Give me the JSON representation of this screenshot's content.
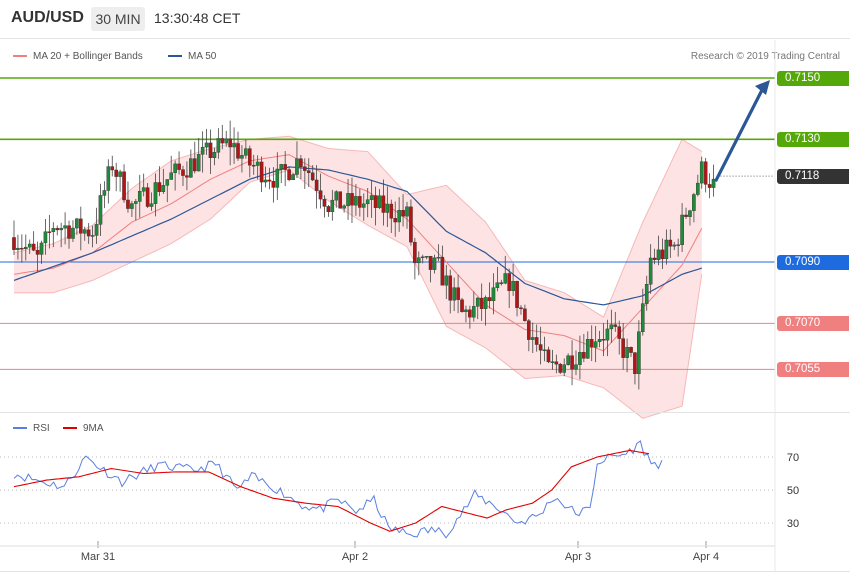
{
  "header": {
    "pair": "AUD/USD",
    "timeframe": "30 MIN",
    "time": "13:30:48 CET"
  },
  "legend": {
    "ma20_label": "MA 20 + Bollinger Bands",
    "ma20_color": "#f08080",
    "ma50_label": "MA 50",
    "ma50_color": "#2b5797"
  },
  "credit": "Research © 2019 Trading Central",
  "rsi_legend": {
    "rsi_label": "RSI",
    "rsi_color": "#5b7fe0",
    "ma9_label": "9MA",
    "ma9_color": "#e00000"
  },
  "levels": [
    {
      "price": 0.715,
      "label": "0.7150",
      "kind": "resistance",
      "color": "#55a80a"
    },
    {
      "price": 0.713,
      "label": "0.7130",
      "kind": "resistance",
      "color": "#55a80a"
    },
    {
      "price": 0.7118,
      "label": "0.7118",
      "kind": "last",
      "color": "#333333"
    },
    {
      "price": 0.709,
      "label": "0.7090",
      "kind": "pivot",
      "color": "#1e6be0"
    },
    {
      "price": 0.707,
      "label": "0.7070",
      "kind": "support",
      "color": "#f07f7f"
    },
    {
      "price": 0.7055,
      "label": "0.7055",
      "kind": "support",
      "color": "#f07f7f"
    }
  ],
  "chart_data": [
    {
      "type": "candlestick",
      "title": "AUD/USD 30 MIN",
      "x_ticks": [
        "Mar 31",
        "Apr 2",
        "Apr 3",
        "Apr 4"
      ],
      "ylim": [
        0.7041,
        0.7172
      ],
      "scale_price": {
        "upper": 0.715,
        "lower": 0.709
      },
      "grid": false,
      "legend_position": "top-left",
      "series": [
        {
          "name": "MA 20 + Bollinger Bands",
          "kind": "ma_bollinger",
          "anchors": [
            [
              0,
              0.7086,
              0.708,
              0.7093
            ],
            [
              10,
              0.7088,
              0.708,
              0.7096
            ],
            [
              20,
              0.7093,
              0.7084,
              0.7102
            ],
            [
              30,
              0.7103,
              0.709,
              0.7114
            ],
            [
              40,
              0.7109,
              0.7096,
              0.7123
            ],
            [
              50,
              0.7117,
              0.7104,
              0.7127
            ],
            [
              60,
              0.7123,
              0.7116,
              0.713
            ],
            [
              70,
              0.7125,
              0.712,
              0.7131
            ],
            [
              80,
              0.7118,
              0.711,
              0.7127
            ],
            [
              90,
              0.7113,
              0.7102,
              0.7126
            ],
            [
              100,
              0.7104,
              0.7095,
              0.7112
            ],
            [
              110,
              0.709,
              0.7069,
              0.7115
            ],
            [
              120,
              0.7076,
              0.7062,
              0.7103
            ],
            [
              130,
              0.7068,
              0.7052,
              0.7084
            ],
            [
              140,
              0.7066,
              0.7053,
              0.708
            ],
            [
              150,
              0.7061,
              0.7049,
              0.7072
            ],
            [
              160,
              0.7075,
              0.7039,
              0.7103
            ],
            [
              170,
              0.7089,
              0.7043,
              0.713
            ],
            [
              175,
              0.7101,
              0.7086,
              0.7126
            ]
          ]
        },
        {
          "name": "MA 50",
          "kind": "ma",
          "anchors": [
            [
              0,
              0.7084
            ],
            [
              20,
              0.7093
            ],
            [
              40,
              0.7104
            ],
            [
              60,
              0.7117
            ],
            [
              70,
              0.7121
            ],
            [
              80,
              0.712
            ],
            [
              90,
              0.7117
            ],
            [
              100,
              0.7113
            ],
            [
              110,
              0.71
            ],
            [
              120,
              0.7093
            ],
            [
              130,
              0.7083
            ],
            [
              140,
              0.7078
            ],
            [
              150,
              0.7076
            ],
            [
              160,
              0.7079
            ],
            [
              170,
              0.7086
            ],
            [
              175,
              0.7088
            ]
          ]
        },
        {
          "name": "AUD/USD",
          "kind": "price",
          "anchors": [
            [
              0,
              0.7098
            ],
            [
              6,
              0.7091
            ],
            [
              10,
              0.7102
            ],
            [
              20,
              0.71
            ],
            [
              25,
              0.7122
            ],
            [
              30,
              0.7108
            ],
            [
              40,
              0.7118
            ],
            [
              50,
              0.7126
            ],
            [
              55,
              0.7129
            ],
            [
              60,
              0.7122
            ],
            [
              67,
              0.7117
            ],
            [
              73,
              0.7124
            ],
            [
              80,
              0.7109
            ],
            [
              90,
              0.7109
            ],
            [
              100,
              0.7105
            ],
            [
              102,
              0.7089
            ],
            [
              108,
              0.7088
            ],
            [
              114,
              0.7073
            ],
            [
              120,
              0.7076
            ],
            [
              126,
              0.7084
            ],
            [
              130,
              0.7071
            ],
            [
              136,
              0.7055
            ],
            [
              142,
              0.7059
            ],
            [
              148,
              0.7066
            ],
            [
              152,
              0.7067
            ],
            [
              158,
              0.7056
            ],
            [
              162,
              0.7091
            ],
            [
              168,
              0.7095
            ],
            [
              171,
              0.7106
            ],
            [
              175,
              0.712
            ],
            [
              178,
              0.7115
            ]
          ]
        }
      ]
    },
    {
      "type": "line",
      "title": "RSI",
      "ylim": [
        18,
        85
      ],
      "y_ticks": [
        70,
        50,
        30
      ],
      "series": [
        {
          "name": "RSI",
          "anchors": [
            [
              0,
              60
            ],
            [
              8,
              55
            ],
            [
              14,
              52
            ],
            [
              20,
              70
            ],
            [
              25,
              62
            ],
            [
              30,
              55
            ],
            [
              40,
              65
            ],
            [
              50,
              62
            ],
            [
              56,
              66
            ],
            [
              62,
              50
            ],
            [
              66,
              58
            ],
            [
              72,
              52
            ],
            [
              80,
              41
            ],
            [
              85,
              38
            ],
            [
              90,
              44
            ],
            [
              95,
              37
            ],
            [
              100,
              44
            ],
            [
              104,
              27
            ],
            [
              110,
              23
            ],
            [
              116,
              26
            ],
            [
              120,
              24
            ],
            [
              124,
              35
            ],
            [
              128,
              47
            ],
            [
              134,
              40
            ],
            [
              140,
              30
            ],
            [
              146,
              35
            ],
            [
              150,
              46
            ],
            [
              156,
              36
            ],
            [
              160,
              38
            ],
            [
              162,
              67
            ],
            [
              166,
              70
            ],
            [
              170,
              72
            ],
            [
              174,
              78
            ],
            [
              177,
              66
            ],
            [
              180,
              66
            ]
          ]
        },
        {
          "name": "9MA",
          "anchors": [
            [
              0,
              52
            ],
            [
              10,
              56
            ],
            [
              20,
              58
            ],
            [
              30,
              63
            ],
            [
              40,
              60
            ],
            [
              50,
              61
            ],
            [
              60,
              61
            ],
            [
              70,
              52
            ],
            [
              80,
              45
            ],
            [
              90,
              42
            ],
            [
              100,
              40
            ],
            [
              110,
              30
            ],
            [
              116,
              25
            ],
            [
              124,
              30
            ],
            [
              132,
              40
            ],
            [
              140,
              36
            ],
            [
              146,
              33
            ],
            [
              152,
              38
            ],
            [
              160,
              42
            ],
            [
              166,
              50
            ],
            [
              172,
              64
            ],
            [
              180,
              70
            ],
            [
              190,
              74
            ],
            [
              196,
              72
            ]
          ]
        }
      ]
    }
  ]
}
